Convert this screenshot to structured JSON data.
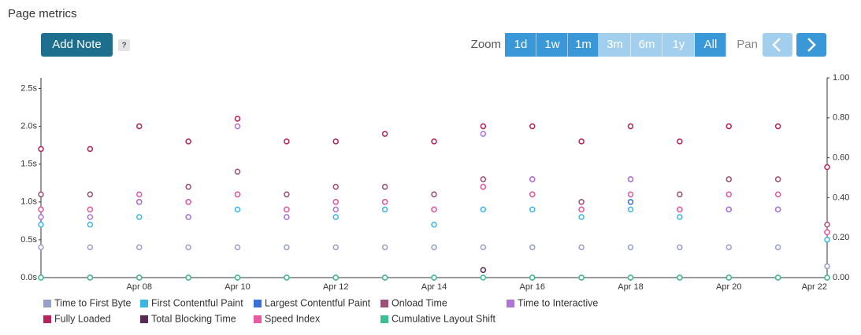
{
  "header": {
    "title": "Page metrics",
    "add_note": "Add Note",
    "help": "?",
    "zoom_label": "Zoom",
    "zoom_options": [
      "1d",
      "1w",
      "1m",
      "3m",
      "6m",
      "1y",
      "All"
    ],
    "pan_label": "Pan"
  },
  "chart_data": {
    "type": "line",
    "categories": [
      null,
      null,
      "Apr 08",
      null,
      "Apr 10",
      null,
      "Apr 12",
      null,
      "Apr 14",
      null,
      "Apr 16",
      null,
      "Apr 18",
      null,
      "Apr 20",
      null,
      "Apr 22"
    ],
    "ylim": [
      0,
      2.64
    ],
    "yticks": [
      {
        "value": 0,
        "label": "0.0s"
      },
      {
        "value": 0.5,
        "label": "0.5s"
      },
      {
        "value": 1,
        "label": "1.0s"
      },
      {
        "value": 1.5,
        "label": "1.5s"
      },
      {
        "value": 2,
        "label": "2.0s"
      },
      {
        "value": 2.5,
        "label": "2.5s"
      }
    ],
    "y2lim": [
      0,
      1
    ],
    "y2ticks": [
      {
        "value": 0,
        "label": "0.00"
      },
      {
        "value": 0.2,
        "label": "0.20"
      },
      {
        "value": 0.4,
        "label": "0.40"
      },
      {
        "value": 0.6,
        "label": "0.60"
      },
      {
        "value": 0.8,
        "label": "0.80"
      },
      {
        "value": 1,
        "label": "1.00"
      }
    ],
    "grid": false,
    "series": [
      {
        "name": "Time to First Byte",
        "color": "#97a0c8",
        "values": [
          0.4,
          0.4,
          0.4,
          0.4,
          0.4,
          0.4,
          0.4,
          0.4,
          0.4,
          0.4,
          0.4,
          0.4,
          0.4,
          0.4,
          0.4,
          0.4,
          0.15
        ]
      },
      {
        "name": "First Contentful Paint",
        "color": "#3bb6e3",
        "values": [
          0.7,
          0.7,
          0.8,
          0.8,
          0.9,
          0.8,
          0.8,
          0.9,
          0.7,
          0.9,
          0.9,
          0.8,
          0.9,
          0.8,
          0.9,
          0.9,
          0.5
        ]
      },
      {
        "name": "Largest Contentful Paint",
        "color": "#3a6fd8",
        "values": [
          0.9,
          0.9,
          1.0,
          1.0,
          1.1,
          0.9,
          1.0,
          1.0,
          0.9,
          1.2,
          1.1,
          0.9,
          1.0,
          0.9,
          0.9,
          0.9,
          0.6
        ]
      },
      {
        "name": "Onload Time",
        "color": "#9e4f76",
        "values": [
          1.1,
          1.1,
          1.0,
          1.2,
          1.4,
          1.1,
          1.2,
          1.2,
          1.1,
          1.3,
          1.3,
          1.0,
          1.3,
          1.1,
          1.3,
          1.3,
          0.7
        ]
      },
      {
        "name": "Time to Interactive",
        "color": "#b074d6",
        "values": [
          0.8,
          0.8,
          1.0,
          0.8,
          2.0,
          0.8,
          0.9,
          1.0,
          0.9,
          1.9,
          1.3,
          0.9,
          1.3,
          0.9,
          0.9,
          0.9,
          0.6
        ]
      },
      {
        "name": "Fully Loaded",
        "color": "#b8245e",
        "values": [
          1.7,
          1.7,
          2.0,
          1.8,
          2.1,
          1.8,
          1.8,
          1.9,
          1.8,
          2.0,
          2.0,
          1.8,
          2.0,
          1.8,
          2.0,
          2.0,
          1.46
        ]
      },
      {
        "name": "Total Blocking Time",
        "color": "#5a2a57",
        "values": [
          0,
          0,
          0,
          0,
          0,
          0,
          0,
          0,
          0,
          0.1,
          0,
          0,
          0,
          0,
          0,
          0,
          0
        ]
      },
      {
        "name": "Speed Index",
        "color": "#e85ba0",
        "values": [
          0.9,
          0.9,
          1.1,
          1.0,
          1.1,
          0.9,
          1.0,
          1.0,
          0.9,
          1.2,
          1.1,
          0.9,
          1.1,
          0.9,
          1.1,
          1.1,
          0.6
        ]
      },
      {
        "name": "Cumulative Layout Shift",
        "color": "#3cbf95",
        "axis": "y2",
        "values": [
          0,
          0,
          0,
          0,
          0,
          0,
          0,
          0,
          0,
          0,
          0,
          0,
          0,
          0,
          0,
          0,
          0
        ]
      }
    ]
  }
}
